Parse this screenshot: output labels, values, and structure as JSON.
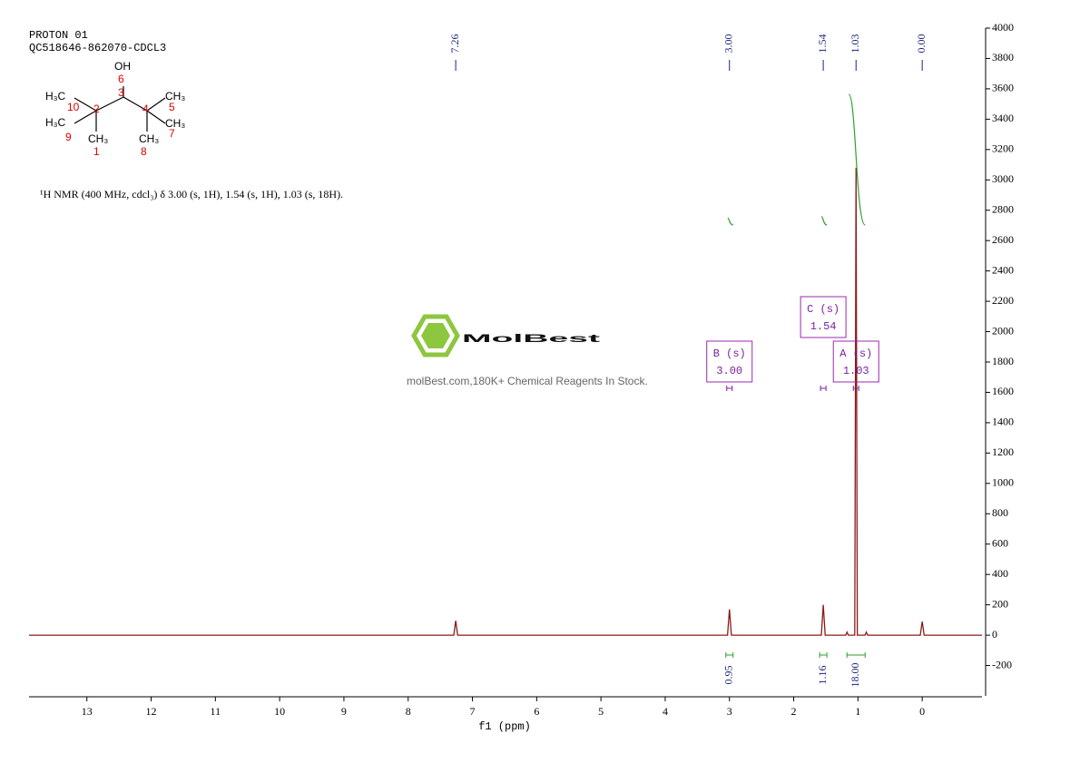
{
  "header": {
    "lines": [
      "PROTON 01",
      "QC518646-862070-CDCL3"
    ],
    "description": "¹H NMR (400 MHz, cdcl₃) δ 3.00 (s, 1H), 1.54 (s, 1H), 1.03 (s, 18H)."
  },
  "structure": {
    "groups": [
      "OH",
      "H₃C",
      "CH₃",
      "H₃C",
      "CH₃",
      "CH₃",
      "CH₃"
    ],
    "numbers": [
      "6",
      "3",
      "10",
      "2",
      "4",
      "5",
      "9",
      "1",
      "8",
      "7"
    ]
  },
  "watermark": {
    "brand": "MolBest",
    "tagline": "molBest.com,180K+ Chemical Reagents In Stock."
  },
  "chart_data": {
    "type": "line",
    "x_label": "f1 (ppm)",
    "color": "#8b1a1a",
    "x": [
      13.9,
      7.29,
      7.26,
      7.23,
      3.03,
      3.0,
      2.97,
      1.57,
      1.54,
      1.51,
      1.19,
      1.17,
      1.15,
      1.05,
      1.03,
      1.01,
      0.89,
      0.87,
      0.85,
      0.03,
      0.0,
      -0.03,
      -0.93
    ],
    "values": [
      0,
      0,
      95,
      0,
      0,
      170,
      0,
      0,
      200,
      0,
      0,
      20,
      0,
      0,
      3080,
      0,
      0,
      20,
      0,
      0,
      90,
      0,
      0
    ],
    "xlim": [
      13.9,
      -0.93
    ],
    "ylim": [
      -400,
      4000
    ],
    "xticks": [
      13,
      12,
      11,
      10,
      9,
      8,
      7,
      6,
      5,
      4,
      3,
      2,
      1,
      0
    ],
    "yticks": [
      -200,
      0,
      200,
      400,
      600,
      800,
      1000,
      1200,
      1400,
      1600,
      1800,
      2000,
      2200,
      2400,
      2600,
      2800,
      3000,
      3200,
      3400,
      3600,
      3800,
      4000
    ],
    "peaks": [
      7.26,
      {
        "value": 3,
        "label": "3.00"
      },
      1.54,
      1.03,
      {
        "value": 0,
        "label": "0.00"
      }
    ],
    "integrals": [
      {
        "shift": 3.0,
        "value": 0.95
      },
      {
        "shift": 1.54,
        "value": 1.16
      },
      {
        "shift": 1.03,
        "value": {
          "value": 18,
          "label": "18.00"
        }
      }
    ],
    "multiplets": [
      {
        "name": "B (s)",
        "shift": {
          "value": 3,
          "label": "3.00"
        }
      },
      {
        "name": "C (s)",
        "shift": 1.54
      },
      {
        "name": "A (s)",
        "shift": 1.03
      }
    ]
  }
}
